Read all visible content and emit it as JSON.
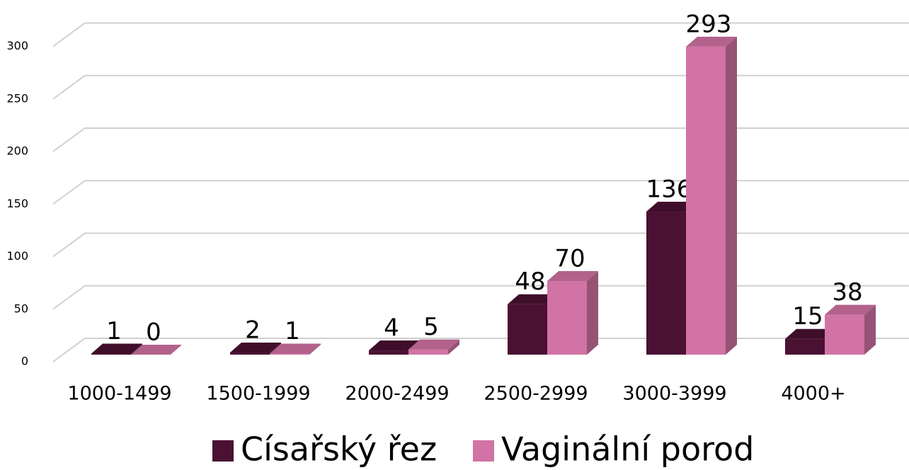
{
  "chart_data": {
    "type": "bar3d",
    "categories": [
      "1000-1499",
      "1500-1999",
      "2000-2499",
      "2500-2999",
      "3000-3999",
      "4000+"
    ],
    "series": [
      {
        "name": "Císařský řez",
        "color": "#4a1133",
        "values": [
          1,
          2,
          4,
          48,
          136,
          15
        ]
      },
      {
        "name": "Vaginální porod",
        "color": "#d173a4",
        "values": [
          0,
          1,
          5,
          70,
          293,
          38
        ]
      }
    ],
    "ylim": [
      0,
      300
    ],
    "yticks": [
      0,
      50,
      100,
      150,
      200,
      250,
      300
    ],
    "grid": true,
    "legend": "bottom"
  }
}
